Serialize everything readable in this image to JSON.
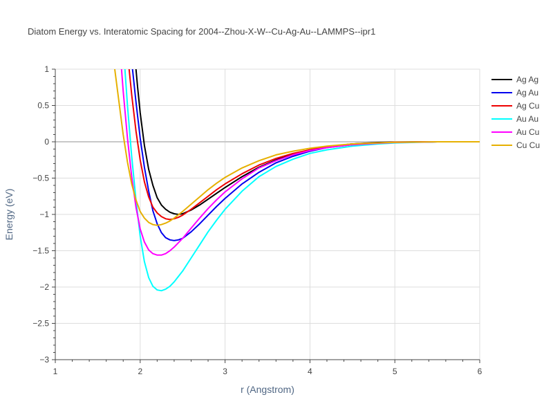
{
  "chart_data": {
    "type": "line",
    "title": "Diatom Energy vs. Interatomic Spacing for 2004--Zhou-X-W--Cu-Ag-Au--LAMMPS--ipr1",
    "xlabel": "r (Angstrom)",
    "ylabel": "Energy (eV)",
    "xlim": [
      1,
      6
    ],
    "ylim": [
      -3,
      1
    ],
    "xticks": [
      "1",
      "2",
      "3",
      "4",
      "5",
      "6"
    ],
    "yticks": [
      "1",
      "0.5",
      "0",
      "−0.5",
      "−1",
      "−1.5",
      "−2",
      "−2.5",
      "−3"
    ],
    "grid": true,
    "legend_position": "top-right",
    "series": [
      {
        "name": "Ag Ag",
        "color": "#000000",
        "x": [
          1.95,
          1.97,
          2.0,
          2.05,
          2.1,
          2.15,
          2.2,
          2.25,
          2.3,
          2.35,
          2.4,
          2.45,
          2.5,
          2.6,
          2.7,
          2.8,
          2.9,
          3.0,
          3.2,
          3.4,
          3.6,
          3.8,
          4.0,
          4.2,
          4.5,
          4.8,
          5.0,
          5.5,
          6.0
        ],
        "y": [
          1.0,
          0.75,
          0.4,
          -0.05,
          -0.38,
          -0.6,
          -0.77,
          -0.87,
          -0.93,
          -0.97,
          -0.99,
          -1.0,
          -0.99,
          -0.94,
          -0.87,
          -0.79,
          -0.71,
          -0.63,
          -0.48,
          -0.35,
          -0.25,
          -0.17,
          -0.11,
          -0.07,
          -0.03,
          -0.01,
          -0.005,
          0.0,
          0.0
        ]
      },
      {
        "name": "Ag Au",
        "color": "#0000ee",
        "x": [
          1.91,
          1.95,
          2.0,
          2.05,
          2.1,
          2.15,
          2.2,
          2.25,
          2.3,
          2.35,
          2.4,
          2.45,
          2.5,
          2.6,
          2.7,
          2.8,
          2.9,
          3.0,
          3.2,
          3.4,
          3.6,
          3.8,
          4.0,
          4.2,
          4.5,
          4.8,
          5.0,
          5.5,
          6.0
        ],
        "y": [
          1.0,
          0.55,
          0.05,
          -0.35,
          -0.68,
          -0.95,
          -1.13,
          -1.25,
          -1.32,
          -1.35,
          -1.36,
          -1.35,
          -1.33,
          -1.24,
          -1.13,
          -1.01,
          -0.89,
          -0.78,
          -0.58,
          -0.42,
          -0.29,
          -0.2,
          -0.13,
          -0.08,
          -0.04,
          -0.02,
          -0.01,
          0.0,
          0.0
        ]
      },
      {
        "name": "Ag Cu",
        "color": "#ee0000",
        "x": [
          1.87,
          1.9,
          1.95,
          2.0,
          2.05,
          2.1,
          2.15,
          2.2,
          2.25,
          2.3,
          2.35,
          2.4,
          2.45,
          2.5,
          2.6,
          2.7,
          2.8,
          2.9,
          3.0,
          3.2,
          3.4,
          3.6,
          3.8,
          4.0,
          4.2,
          4.5,
          4.8,
          5.0,
          5.5,
          6.0
        ],
        "y": [
          1.0,
          0.65,
          0.15,
          -0.25,
          -0.55,
          -0.76,
          -0.9,
          -0.98,
          -1.03,
          -1.06,
          -1.07,
          -1.06,
          -1.04,
          -1.01,
          -0.93,
          -0.84,
          -0.75,
          -0.66,
          -0.58,
          -0.44,
          -0.32,
          -0.23,
          -0.16,
          -0.11,
          -0.07,
          -0.03,
          -0.015,
          -0.005,
          0.0,
          0.0
        ]
      },
      {
        "name": "Au Au",
        "color": "#00ffff",
        "x": [
          1.82,
          1.85,
          1.9,
          1.95,
          2.0,
          2.05,
          2.1,
          2.15,
          2.2,
          2.25,
          2.3,
          2.35,
          2.4,
          2.5,
          2.6,
          2.7,
          2.8,
          2.9,
          3.0,
          3.2,
          3.4,
          3.6,
          3.8,
          4.0,
          4.2,
          4.5,
          4.8,
          5.0,
          5.5,
          6.0
        ],
        "y": [
          1.0,
          0.5,
          -0.2,
          -0.8,
          -1.3,
          -1.65,
          -1.87,
          -1.99,
          -2.04,
          -2.05,
          -2.03,
          -1.99,
          -1.93,
          -1.78,
          -1.6,
          -1.42,
          -1.24,
          -1.08,
          -0.93,
          -0.68,
          -0.48,
          -0.34,
          -0.24,
          -0.16,
          -0.11,
          -0.06,
          -0.03,
          -0.015,
          0.0,
          0.0
        ]
      },
      {
        "name": "Au Cu",
        "color": "#ff00ff",
        "x": [
          1.78,
          1.8,
          1.85,
          1.9,
          1.95,
          2.0,
          2.05,
          2.1,
          2.15,
          2.2,
          2.25,
          2.3,
          2.35,
          2.4,
          2.5,
          2.6,
          2.7,
          2.8,
          2.9,
          3.0,
          3.2,
          3.4,
          3.6,
          3.8,
          4.0,
          4.2,
          4.5,
          4.8,
          5.0,
          5.5,
          6.0
        ],
        "y": [
          1.0,
          0.7,
          0.05,
          -0.48,
          -0.9,
          -1.2,
          -1.38,
          -1.49,
          -1.54,
          -1.56,
          -1.56,
          -1.54,
          -1.5,
          -1.45,
          -1.33,
          -1.19,
          -1.05,
          -0.92,
          -0.8,
          -0.69,
          -0.51,
          -0.36,
          -0.26,
          -0.18,
          -0.12,
          -0.08,
          -0.04,
          -0.02,
          -0.01,
          0.0,
          0.0
        ]
      },
      {
        "name": "Cu Cu",
        "color": "#e6b000",
        "x": [
          1.7,
          1.75,
          1.8,
          1.85,
          1.9,
          1.95,
          2.0,
          2.05,
          2.1,
          2.15,
          2.2,
          2.25,
          2.3,
          2.35,
          2.4,
          2.5,
          2.6,
          2.7,
          2.8,
          2.9,
          3.0,
          3.2,
          3.4,
          3.6,
          3.8,
          4.0,
          4.2,
          4.5,
          4.8,
          5.0,
          5.5,
          6.0
        ],
        "y": [
          1.0,
          0.55,
          0.1,
          -0.28,
          -0.58,
          -0.8,
          -0.96,
          -1.05,
          -1.11,
          -1.14,
          -1.15,
          -1.14,
          -1.12,
          -1.09,
          -1.05,
          -0.96,
          -0.86,
          -0.76,
          -0.66,
          -0.57,
          -0.49,
          -0.36,
          -0.26,
          -0.18,
          -0.13,
          -0.09,
          -0.06,
          -0.03,
          -0.015,
          -0.008,
          0.0,
          0.0
        ]
      }
    ]
  }
}
